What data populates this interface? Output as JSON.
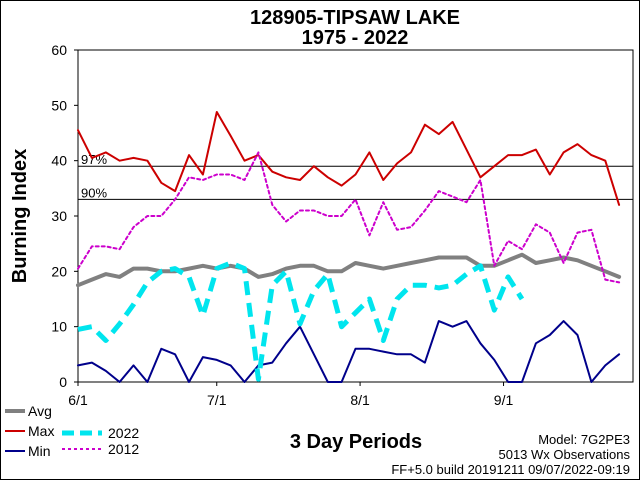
{
  "title_line1": "128905-TIPSAW LAKE",
  "title_line2": "1975 - 2022",
  "footer": {
    "model": "Model: 7G2PE3",
    "observations": "5013 Wx Observations",
    "build": "FF+5.0 build 20191211 09/07/2022-09:19"
  },
  "legend": [
    {
      "label": "Avg",
      "color": "#808080",
      "style": "solid",
      "width": 4
    },
    {
      "label": "Max",
      "color": "#cc0000",
      "style": "solid",
      "width": 2
    },
    {
      "label": "Min",
      "color": "#00008b",
      "style": "solid",
      "width": 2
    },
    {
      "label": "2022",
      "color": "#00e5ee",
      "style": "dashed",
      "width": 5
    },
    {
      "label": "2012",
      "color": "#cc00cc",
      "style": "dotted",
      "width": 2
    }
  ],
  "chart_data": {
    "type": "line",
    "xlabel": "3 Day Periods",
    "ylabel": "Burning Index",
    "ylim": [
      0,
      60
    ],
    "yticks": [
      "0",
      "10",
      "20",
      "30",
      "40",
      "50",
      "60"
    ],
    "xticks": [
      {
        "label": "6/1",
        "index": 0
      },
      {
        "label": "7/1",
        "index": 10
      },
      {
        "label": "8/1",
        "index": 20.33
      },
      {
        "label": "9/1",
        "index": 30.67
      }
    ],
    "x_count": 41,
    "grid": false,
    "reference_lines": [
      {
        "label": "97%",
        "value": 39
      },
      {
        "label": "90%",
        "value": 33
      }
    ],
    "series": [
      {
        "name": "Max",
        "values": [
          45.5,
          40.5,
          41.5,
          40,
          40.5,
          40,
          36,
          34.5,
          41,
          37.5,
          48.8,
          44.5,
          40,
          41,
          38,
          37,
          36.5,
          39,
          37,
          35.5,
          37.5,
          41.5,
          36.5,
          39.5,
          41.5,
          46.5,
          44.8,
          47,
          42,
          37,
          39,
          41,
          41,
          42,
          37.5,
          41.5,
          43,
          41,
          40,
          32
        ]
      },
      {
        "name": "Avg",
        "values": [
          17.5,
          18.5,
          19.5,
          19,
          20.5,
          20.5,
          20,
          20,
          20.5,
          21,
          20.5,
          21,
          20.5,
          19,
          19.5,
          20.5,
          21,
          21,
          20,
          20,
          21.5,
          21,
          20.5,
          21,
          21.5,
          22,
          22.5,
          22.5,
          22.5,
          21,
          21,
          22,
          23,
          21.5,
          22,
          22.5,
          22,
          21,
          20,
          19
        ]
      },
      {
        "name": "Min",
        "values": [
          3,
          3.5,
          2,
          0,
          3,
          0,
          6,
          5,
          0,
          4.5,
          4,
          3,
          0,
          3,
          3.5,
          7,
          10,
          5,
          0,
          0,
          6,
          6,
          5.5,
          5,
          5,
          3.5,
          11,
          10,
          11,
          7,
          4,
          0,
          0,
          7,
          8.5,
          11,
          8.5,
          0,
          3,
          5
        ]
      },
      {
        "name": "2022",
        "values": [
          9.5,
          10,
          7.5,
          10.5,
          14,
          18,
          20,
          20.5,
          19,
          12,
          20.5,
          21.5,
          20.5,
          0.5,
          17.5,
          20,
          10.5,
          16.5,
          19.5,
          10,
          12.5,
          15,
          7.5,
          15,
          17.5,
          17.5,
          17,
          17.5,
          19.5,
          21,
          13,
          19,
          15
        ]
      },
      {
        "name": "2012",
        "values": [
          20.5,
          24.5,
          24.5,
          24,
          28,
          30,
          30,
          33,
          37,
          36.5,
          37.5,
          37.5,
          36.5,
          41.5,
          32,
          29,
          31,
          31,
          30,
          30,
          33,
          26.5,
          32.5,
          27.5,
          28,
          31,
          34.5,
          33.5,
          32.5,
          36.5,
          21,
          25.5,
          24,
          28.5,
          27,
          21.5,
          27,
          27.5,
          18.5,
          18
        ]
      }
    ]
  }
}
